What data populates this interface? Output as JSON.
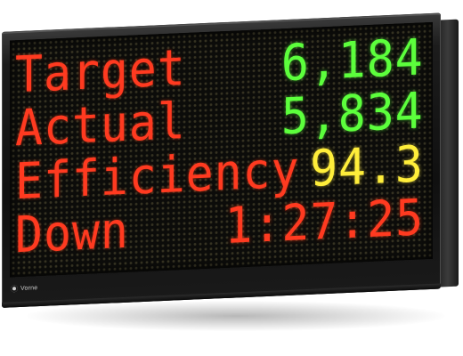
{
  "display": {
    "rows": [
      {
        "label": "Target",
        "value": "6,184",
        "value_color": "#5cff3c"
      },
      {
        "label": "Actual",
        "value": "5,834",
        "value_color": "#5cff3c"
      },
      {
        "label": "Efficiency",
        "value": "94.3",
        "value_color": "#ffee3a"
      },
      {
        "label": "Down",
        "value": "1:27:25",
        "value_color": "#ff3a20"
      }
    ],
    "label_color": "#ff3a20"
  },
  "brand": {
    "logo_icon": "brand-logo-icon",
    "name": "Vorne"
  }
}
